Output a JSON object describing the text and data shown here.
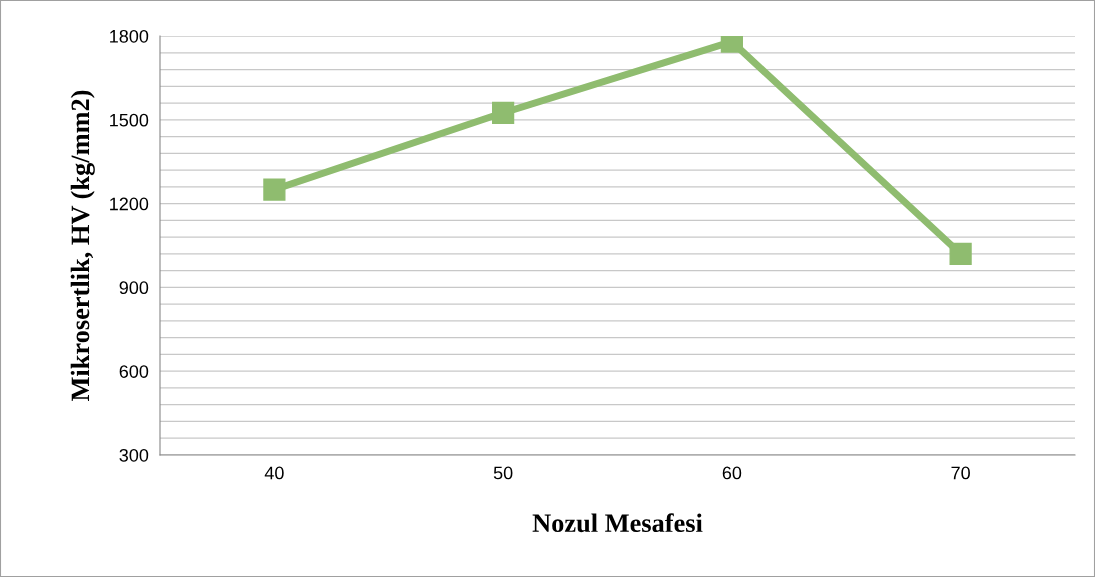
{
  "chart_data": {
    "type": "line",
    "xlabel": "Nozul Mesafesi",
    "ylabel": "Mikrosertlik, HV (kg/mm2)",
    "categories": [
      "40",
      "50",
      "60",
      "70"
    ],
    "series": [
      {
        "color": "#8fbc6f",
        "values": [
          1250,
          1525,
          1780,
          1020
        ]
      }
    ],
    "ylim": [
      300,
      1800
    ],
    "yticks": [
      300,
      {
        "value": 360,
        "label": null
      },
      {
        "value": 420,
        "label": null
      },
      {
        "value": 480,
        "label": null
      },
      {
        "value": 540,
        "label": null
      },
      600,
      {
        "value": 660,
        "label": null
      },
      {
        "value": 720,
        "label": null
      },
      {
        "value": 780,
        "label": null
      },
      {
        "value": 840,
        "label": null
      },
      900,
      {
        "value": 960,
        "label": null
      },
      {
        "value": 1020,
        "label": null
      },
      {
        "value": 1080,
        "label": null
      },
      {
        "value": 1140,
        "label": null
      },
      1200,
      {
        "value": 1260,
        "label": null
      },
      {
        "value": 1320,
        "label": null
      },
      {
        "value": 1380,
        "label": null
      },
      {
        "value": 1440,
        "label": null
      },
      1500,
      {
        "value": 1560,
        "label": null
      },
      {
        "value": 1620,
        "label": null
      },
      {
        "value": 1680,
        "label": null
      },
      {
        "value": 1740,
        "label": null
      },
      1800
    ],
    "grid": "y",
    "marker": "square",
    "line_style": "solid",
    "legend": false
  }
}
